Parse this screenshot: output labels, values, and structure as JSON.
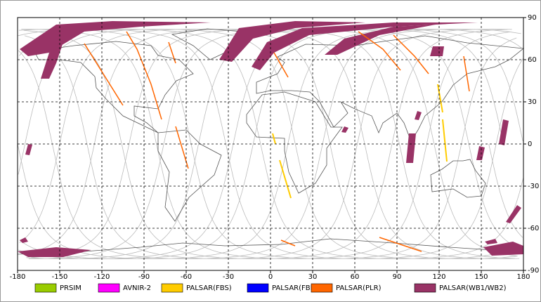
{
  "chart_data": {
    "type": "map",
    "xlim": [
      -180,
      180
    ],
    "ylim": [
      -90,
      90
    ],
    "xticks": [
      -180,
      -150,
      -120,
      -90,
      -60,
      -30,
      0,
      30,
      60,
      90,
      120,
      150,
      180
    ],
    "yticks": [
      -90,
      -60,
      -30,
      0,
      30,
      60,
      90
    ],
    "grid": true,
    "legend": [
      {
        "name": "PRSIM",
        "color": "#99cc00"
      },
      {
        "name": "AVNIR-2",
        "color": "#ff00ff"
      },
      {
        "name": "PALSAR(FBS)",
        "color": "#ffcc00"
      },
      {
        "name": "PALSAR(FBD)",
        "color": "#0000ff"
      },
      {
        "name": "PALSAR(PLR)",
        "color": "#ff6600"
      },
      {
        "name": "PALSAR(WB1/WB2)",
        "color": "#993366"
      }
    ]
  }
}
